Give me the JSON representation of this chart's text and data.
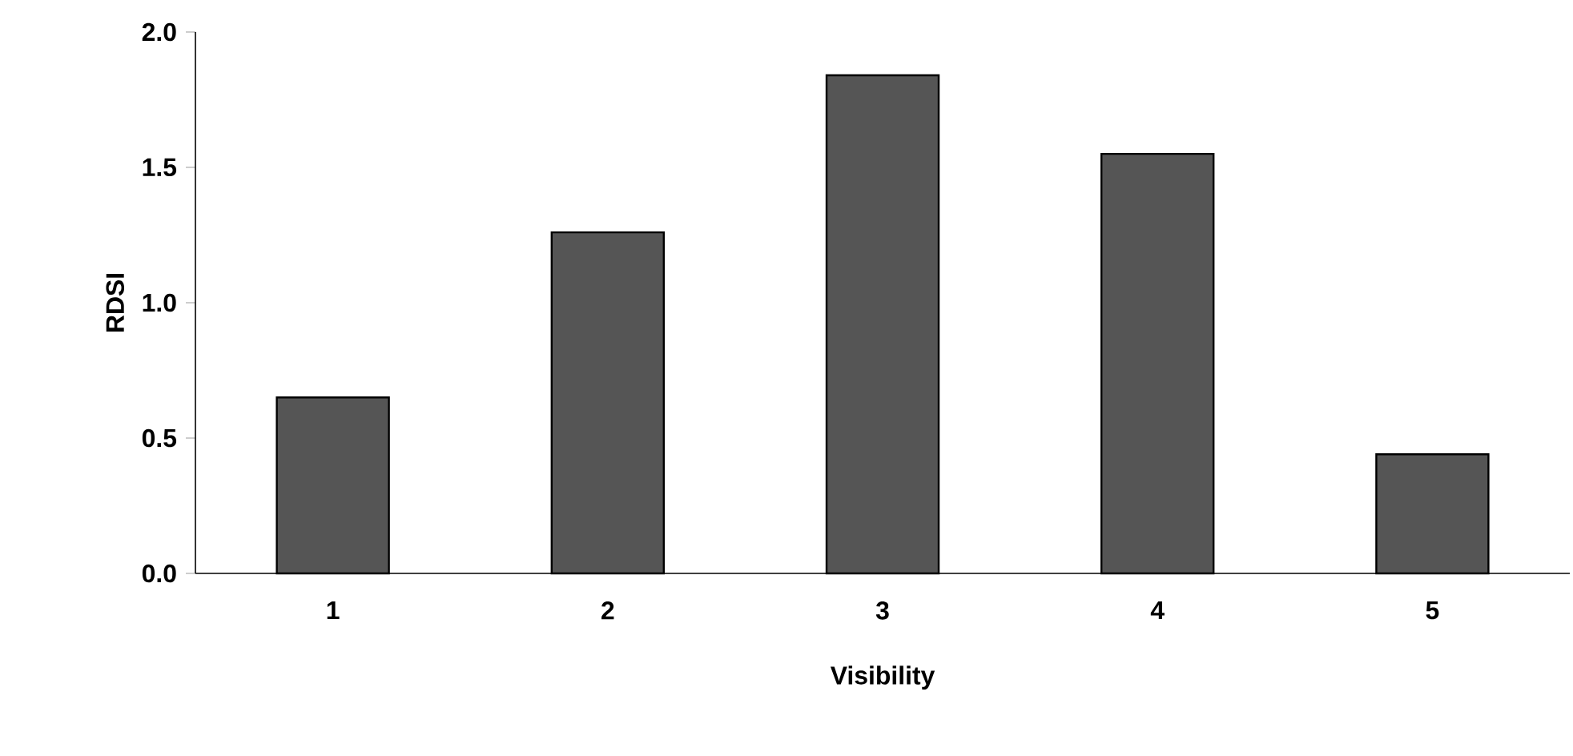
{
  "chart_data": {
    "type": "bar",
    "xlabel": "Visibility",
    "ylabel": "RDSI",
    "categories": [
      "1",
      "2",
      "3",
      "4",
      "5"
    ],
    "values": [
      0.65,
      1.26,
      1.84,
      1.55,
      0.44
    ],
    "color": "#555555",
    "ylim": [
      0,
      2.0
    ],
    "yticks": [
      {
        "value": 0,
        "label": "0.0"
      },
      {
        "value": 0.5,
        "label": "0.5"
      },
      {
        "value": 1.0,
        "label": "1.0"
      },
      {
        "value": 1.5,
        "label": "1.5"
      },
      {
        "value": 2.0,
        "label": "2.0"
      }
    ],
    "grid": false
  }
}
